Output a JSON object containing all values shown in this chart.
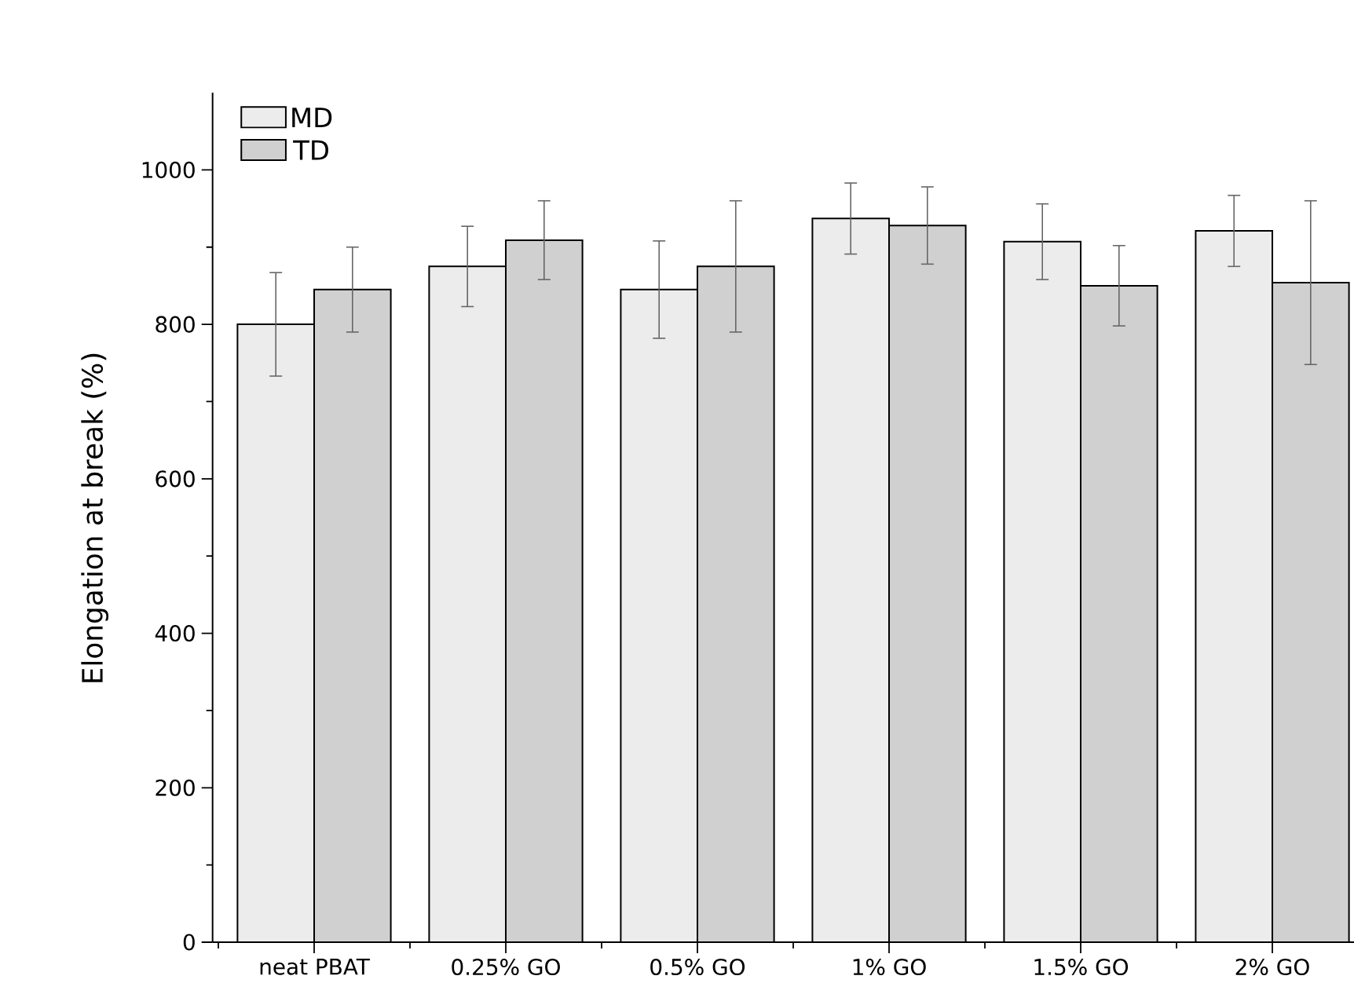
{
  "chart_data": {
    "type": "bar",
    "ylabel": "Elongation at break (%)",
    "categories": [
      "neat PBAT",
      "0.25% GO",
      "0.5% GO",
      "1% GO",
      "1.5% GO",
      "2% GO"
    ],
    "series": [
      {
        "name": "MD",
        "color": "#ececec",
        "values": [
          800,
          875,
          845,
          937,
          907,
          921
        ],
        "errors": [
          67,
          52,
          63,
          46,
          49,
          46
        ]
      },
      {
        "name": "TD",
        "color": "#d0d0d0",
        "values": [
          845,
          909,
          875,
          928,
          850,
          854
        ],
        "errors": [
          55,
          51,
          85,
          50,
          52,
          106
        ]
      }
    ],
    "ylim": [
      0,
      1100
    ],
    "yticks": [
      0,
      200,
      400,
      600,
      800,
      1000
    ],
    "legend": "top left",
    "grid": false
  }
}
